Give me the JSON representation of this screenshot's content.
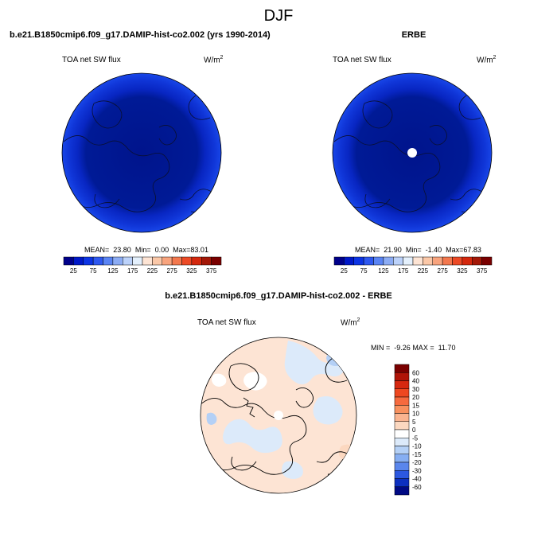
{
  "figure": {
    "title": "DJF"
  },
  "panels": {
    "model": {
      "title": "b.e21.B1850cmip6.f09_g17.DAMIP-hist-co2.002 (yrs 1990-2014)",
      "variable": "TOA net SW flux",
      "units": "W/m",
      "units_exp": "2",
      "mean_label": "MEAN=",
      "mean": "23.80",
      "min_label": "Min=",
      "min": "0.00",
      "max_label": "Max=",
      "max": "83.01"
    },
    "obs": {
      "title": "ERBE",
      "variable": "TOA net SW flux",
      "units": "W/m",
      "units_exp": "2",
      "mean_label": "MEAN=",
      "mean": "21.90",
      "min_label": "Min=",
      "min": "-1.40",
      "max_label": "Max=",
      "max": "67.83"
    },
    "diff": {
      "title": "b.e21.B1850cmip6.f09_g17.DAMIP-hist-co2.002 - ERBE",
      "variable": "TOA net SW flux",
      "units": "W/m",
      "units_exp": "2",
      "min_label": "MIN =",
      "min": "-9.26",
      "max_label": "MAX =",
      "max": "11.70"
    }
  },
  "chart_data": [
    {
      "type": "heatmap",
      "title": "b.e21.B1850cmip6.f09_g17.DAMIP-hist-co2.002 (yrs 1990-2014)",
      "projection": "north-polar-stereographic",
      "variable": "TOA net SW flux",
      "units": "W/m2",
      "stats": {
        "mean": 23.8,
        "min": 0.0,
        "max": 83.01
      },
      "colorbar": {
        "orientation": "horizontal",
        "tick_labels": [
          "25",
          "75",
          "125",
          "175",
          "225",
          "275",
          "325",
          "375"
        ],
        "colors": [
          "#00008a",
          "#0018c8",
          "#0c34e4",
          "#2e58f0",
          "#5a84f4",
          "#8cacf4",
          "#bcd2fa",
          "#e4f0fc",
          "#fde4d4",
          "#fbc8a8",
          "#f8a47e",
          "#f3784e",
          "#ec4a26",
          "#d4280e",
          "#a31808",
          "#7a0000"
        ]
      },
      "dominant_colors": [
        "#00148c",
        "#0826c2",
        "#1440e6"
      ]
    },
    {
      "type": "heatmap",
      "title": "ERBE",
      "projection": "north-polar-stereographic",
      "variable": "TOA net SW flux",
      "units": "W/m2",
      "stats": {
        "mean": 21.9,
        "min": -1.4,
        "max": 67.83
      },
      "colorbar": {
        "orientation": "horizontal",
        "tick_labels": [
          "25",
          "75",
          "125",
          "175",
          "225",
          "275",
          "325",
          "375"
        ],
        "colors": [
          "#00008a",
          "#0018c8",
          "#0c34e4",
          "#2e58f0",
          "#5a84f4",
          "#8cacf4",
          "#bcd2fa",
          "#e4f0fc",
          "#fde4d4",
          "#fbc8a8",
          "#f8a47e",
          "#f3784e",
          "#ec4a26",
          "#d4280e",
          "#a31808",
          "#7a0000"
        ]
      },
      "dominant_colors": [
        "#00148c",
        "#0826c2",
        "#1440e6"
      ],
      "missing_pole": true
    },
    {
      "type": "heatmap",
      "title": "b.e21.B1850cmip6.f09_g17.DAMIP-hist-co2.002 - ERBE",
      "projection": "north-polar-stereographic",
      "variable": "TOA net SW flux",
      "units": "W/m2",
      "stats": {
        "min": -9.26,
        "max": 11.7
      },
      "colorbar": {
        "orientation": "vertical",
        "tick_labels": [
          "60",
          "40",
          "30",
          "20",
          "15",
          "10",
          "5",
          "0",
          "-5",
          "-10",
          "-15",
          "-20",
          "-30",
          "-40",
          "-60"
        ],
        "colors": [
          "#7a0000",
          "#b01408",
          "#d62810",
          "#ee4820",
          "#f66a3e",
          "#f8905e",
          "#fab490",
          "#fcd8c0",
          "#ffffff",
          "#dceafa",
          "#b4d0f6",
          "#86aef2",
          "#5a86ec",
          "#2c58e0",
          "#0c30c0",
          "#000a84"
        ]
      },
      "dominant_colors": [
        "#fde4d4",
        "#ffffff",
        "#dceafa"
      ],
      "missing_pole": true
    }
  ]
}
